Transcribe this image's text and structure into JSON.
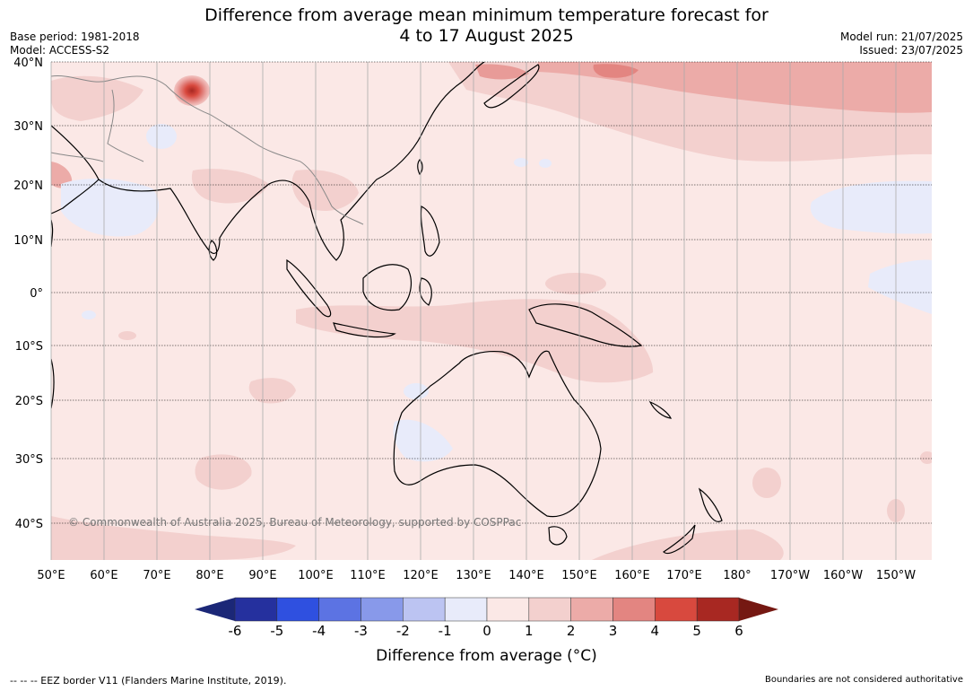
{
  "title": {
    "line1": "Difference from average mean minimum temperature forecast for",
    "line2": "4 to 17 August 2025"
  },
  "meta": {
    "base_period": "Base period: 1981-2018",
    "model": "Model: ACCESS-S2",
    "model_run": "Model run: 21/07/2025",
    "issued": "Issued: 23/07/2025"
  },
  "copyright": "© Commonwealth of Australia 2025, Bureau of Meteorology, supported by COSPPac",
  "map": {
    "lat_ticks": [
      "40°N",
      "30°N",
      "20°N",
      "10°N",
      "0°",
      "10°S",
      "20°S",
      "30°S",
      "40°S"
    ],
    "lon_ticks": [
      "50°E",
      "60°E",
      "70°E",
      "80°E",
      "90°E",
      "100°E",
      "110°E",
      "120°E",
      "130°E",
      "140°E",
      "150°E",
      "160°E",
      "170°E",
      "180°",
      "170°W",
      "160°W",
      "150°W"
    ],
    "background_anomaly_class": "0 to 1"
  },
  "colorbar": {
    "ticks": [
      "-6",
      "-5",
      "-4",
      "-3",
      "-2",
      "-1",
      "0",
      "1",
      "2",
      "3",
      "4",
      "5",
      "6"
    ],
    "colors": [
      "#25309e",
      "#2f50e0",
      "#5c73e3",
      "#8899ea",
      "#bcc4f2",
      "#e8ebfa",
      "#fbe8e6",
      "#f3d0ce",
      "#ecaba8",
      "#e38581",
      "#d8493e",
      "#a82822"
    ],
    "below_color": "#1b2777",
    "above_color": "#751812",
    "label": "Difference from average (°C)"
  },
  "footer": {
    "left": "--  --  -- EEZ border V11 (Flanders Marine Institute, 2019).",
    "right": "Boundaries are not considered authoritative"
  }
}
